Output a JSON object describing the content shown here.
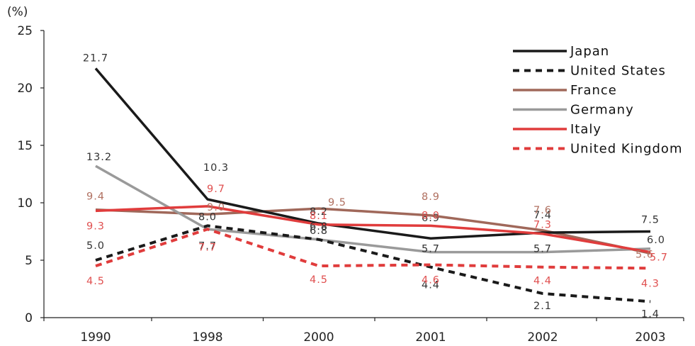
{
  "chart_data": {
    "type": "line",
    "unit_label": "(%)",
    "categories": [
      "1990",
      "1998",
      "2000",
      "2001",
      "2002",
      "2003"
    ],
    "ylim": [
      0,
      25
    ],
    "yticks": [
      0,
      5,
      10,
      15,
      20,
      25
    ],
    "grid": false,
    "legend_position": "top-right",
    "series": [
      {
        "name": "Japan",
        "values": [
          21.7,
          10.3,
          8.2,
          6.9,
          7.4,
          7.5
        ],
        "color": "#1a1a1a",
        "dash": "solid",
        "label_color": "#333333",
        "labels": [
          "21.7",
          "10.3",
          "8.2",
          "6.9",
          "7.4",
          "7.5"
        ]
      },
      {
        "name": "United States",
        "values": [
          5.0,
          8.0,
          6.8,
          4.4,
          2.1,
          1.4
        ],
        "color": "#1a1a1a",
        "dash": "dashed",
        "label_color": "#333333",
        "labels": [
          "5.0",
          "8.0",
          "6.8",
          "4.4",
          "2.1",
          "1.4"
        ]
      },
      {
        "name": "France",
        "values": [
          9.4,
          9.0,
          9.5,
          8.9,
          7.6,
          5.6
        ],
        "color": "#a0685a",
        "dash": "solid",
        "label_color": "#b07060",
        "labels": [
          "9.4",
          "9.0",
          "9.5",
          "8.9",
          "7.6",
          "5.6"
        ]
      },
      {
        "name": "Germany",
        "values": [
          13.2,
          7.7,
          6.8,
          5.7,
          5.7,
          6.0
        ],
        "color": "#9a9a9a",
        "dash": "solid",
        "label_color": "#333333",
        "labels": [
          "13.2",
          "7.7",
          "6.8",
          "5.7",
          "5.7",
          "6.0"
        ]
      },
      {
        "name": "Italy",
        "values": [
          9.3,
          9.7,
          8.1,
          8.0,
          7.3,
          5.7
        ],
        "color": "#e03c3c",
        "dash": "solid",
        "label_color": "#e05050",
        "labels": [
          "9.3",
          "9.7",
          "8.1",
          "8.0",
          "7.3",
          "5.7"
        ]
      },
      {
        "name": "United Kingdom",
        "values": [
          4.5,
          7.7,
          4.5,
          4.6,
          4.4,
          4.3
        ],
        "color": "#e03c3c",
        "dash": "dashed",
        "label_color": "#e05050",
        "labels": [
          "4.5",
          "7.7",
          "4.5",
          "4.6",
          "4.4",
          "4.3"
        ]
      }
    ]
  }
}
